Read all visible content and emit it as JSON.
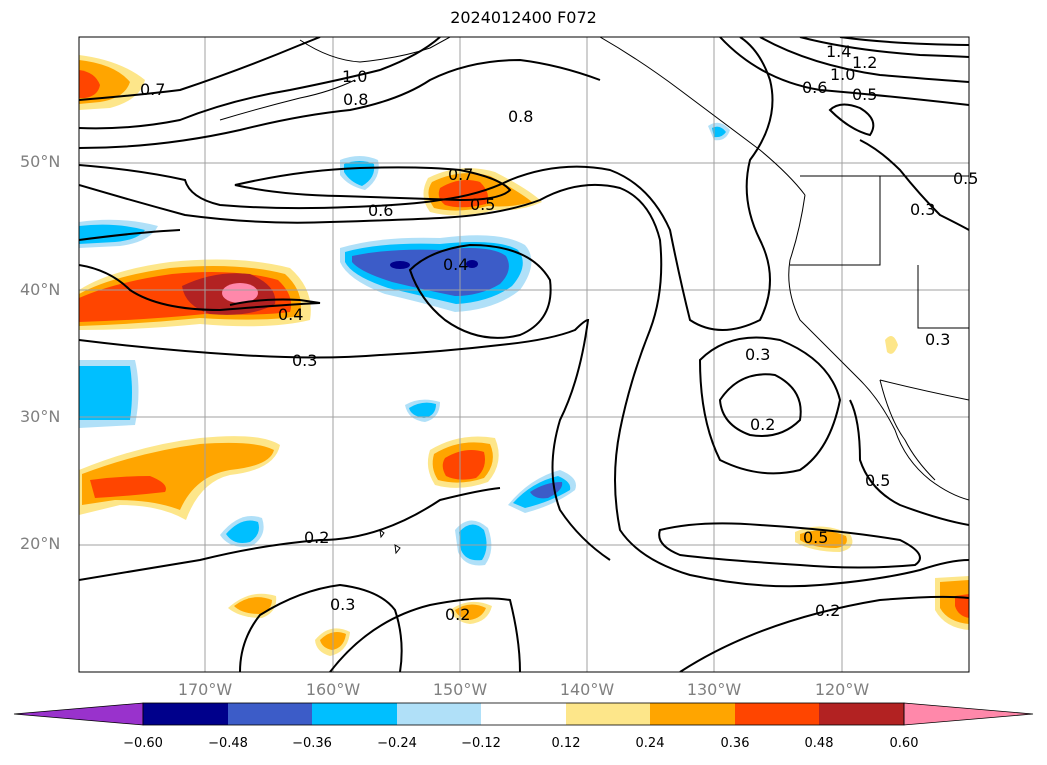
{
  "title": "2024012400 F072",
  "axes": {
    "lat_labels": [
      "50°N",
      "40°N",
      "30°N",
      "20°N"
    ],
    "lon_labels": [
      "170°W",
      "160°W",
      "150°W",
      "140°W",
      "130°W",
      "120°W"
    ]
  },
  "contour_labels": [
    "0.7",
    "1.0",
    "0.8",
    "0.8",
    "0.7",
    "0.6",
    "0.5",
    "0.4",
    "0.4",
    "0.3",
    "0.3",
    "0.2",
    "0.2",
    "0.5",
    "0.5",
    "0.3",
    "0.2",
    "0.2",
    "1.4",
    "1.2",
    "1.0",
    "0.6",
    "0.5",
    "0.3",
    "0.3",
    "0.5"
  ],
  "colorbar": {
    "ticks": [
      "−0.60",
      "−0.48",
      "−0.36",
      "−0.24",
      "−0.12",
      "0.12",
      "0.24",
      "0.36",
      "0.48",
      "0.60"
    ],
    "colors": {
      "under": "#9932cc",
      "c1": "#00008b",
      "c2": "#3c5cc8",
      "c3": "#00bfff",
      "c4": "#b0e0f8",
      "c5": "#ffffff",
      "c6": "#fde68a",
      "c7": "#ffa500",
      "c8": "#ff4500",
      "c9": "#b22222",
      "over": "#ff88aa"
    }
  }
}
